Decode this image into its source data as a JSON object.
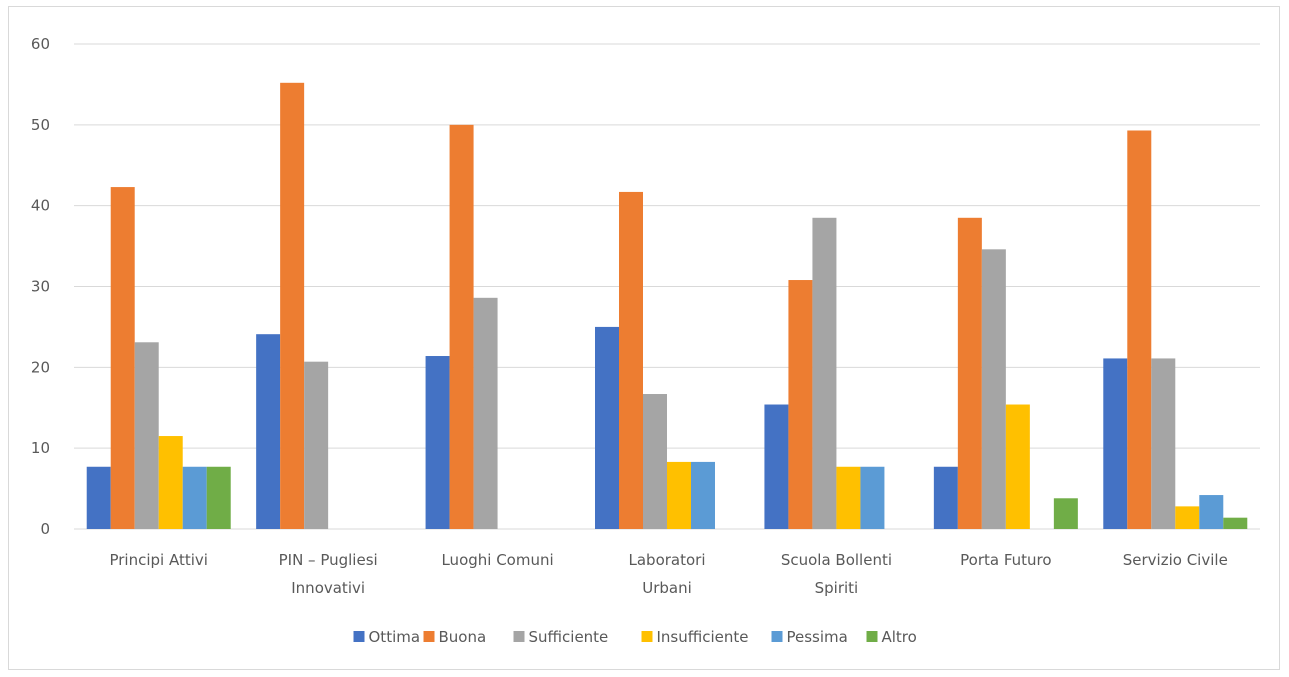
{
  "chart_data": {
    "type": "bar",
    "categories": [
      [
        "Principi Attivi"
      ],
      [
        "PIN – Pugliesi",
        "Innovativi"
      ],
      [
        "Luoghi Comuni"
      ],
      [
        "Laboratori",
        "Urbani"
      ],
      [
        "Scuola Bollenti",
        "Spiriti"
      ],
      [
        "Porta Futuro"
      ],
      [
        "Servizio Civile"
      ]
    ],
    "series": [
      {
        "name": "Ottima",
        "color": "#4472C4",
        "values": [
          7.7,
          24.1,
          21.4,
          25.0,
          15.4,
          7.7,
          21.1
        ]
      },
      {
        "name": "Buona",
        "color": "#ED7D31",
        "values": [
          42.3,
          55.2,
          50.0,
          41.7,
          30.8,
          38.5,
          49.3
        ]
      },
      {
        "name": "Sufficiente",
        "color": "#A5A5A5",
        "values": [
          23.1,
          20.7,
          28.6,
          16.7,
          38.5,
          34.6,
          21.1
        ]
      },
      {
        "name": "Insufficiente",
        "color": "#FFC000",
        "values": [
          11.5,
          0,
          0,
          8.3,
          7.7,
          15.4,
          2.8
        ]
      },
      {
        "name": "Pessima",
        "color": "#5B9BD5",
        "values": [
          7.7,
          0,
          0,
          8.3,
          7.7,
          0,
          4.2
        ]
      },
      {
        "name": "Altro",
        "color": "#70AD47",
        "values": [
          7.7,
          0,
          0,
          0,
          0,
          3.8,
          1.4
        ]
      }
    ],
    "ylim": [
      0,
      60
    ],
    "yticks": [
      0,
      10,
      20,
      30,
      40,
      50,
      60
    ],
    "grid": true,
    "legend": "bottom",
    "gridline_color": "#d9d9d9"
  }
}
